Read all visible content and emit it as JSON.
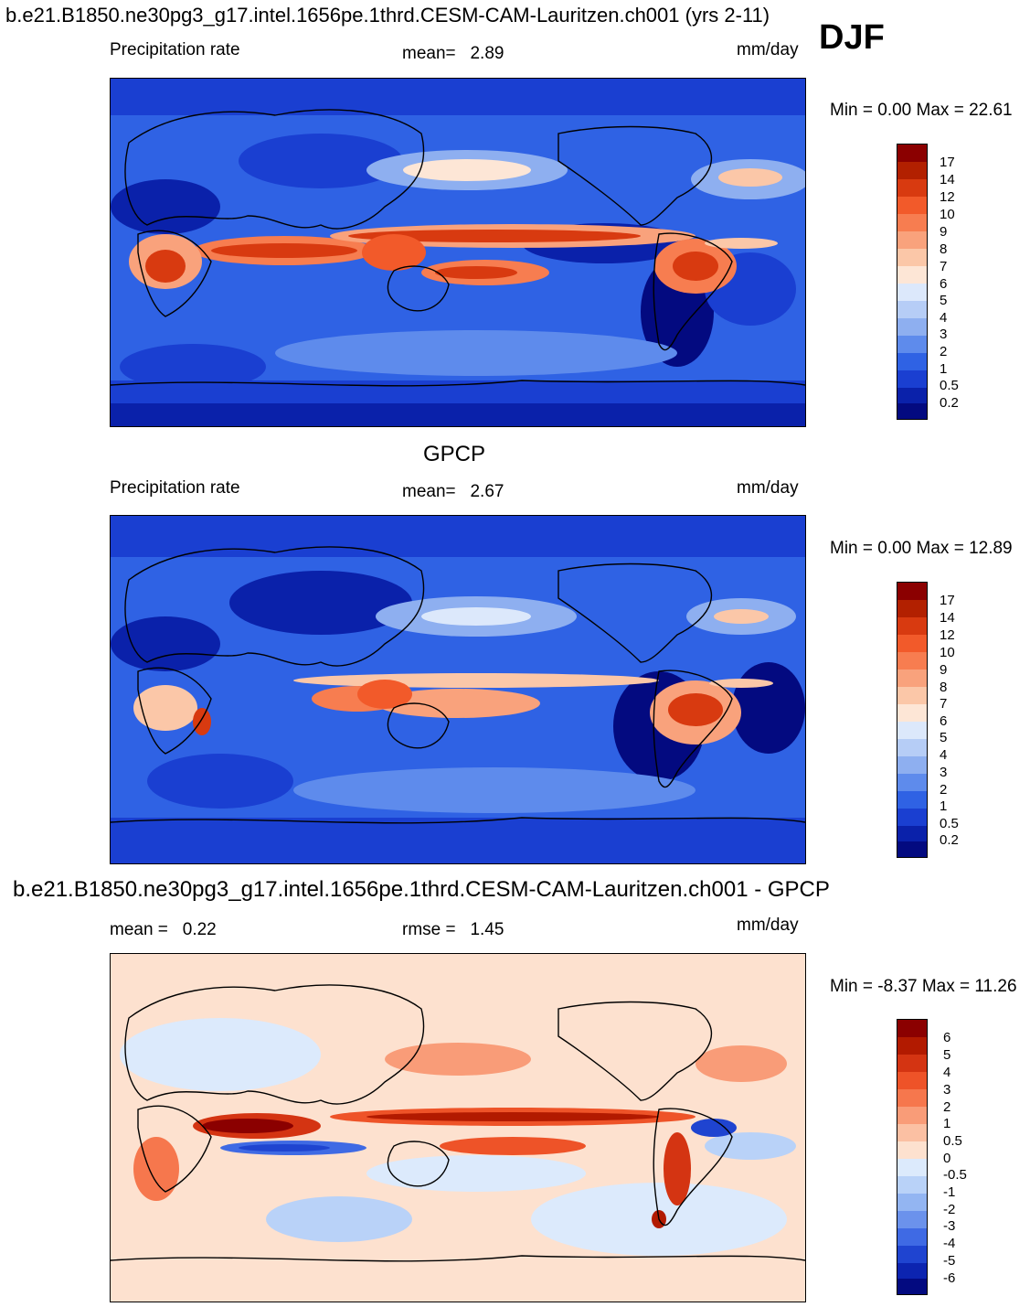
{
  "header": {
    "title": "b.e21.B1850.ne30pg3_g17.intel.1656pe.1thrd.CESM-CAM-Lauritzen.ch001 (yrs 2-11)",
    "season": "DJF"
  },
  "panels": [
    {
      "name": "model",
      "variable": "Precipitation rate",
      "stat_label": "mean=",
      "stat_value": "2.89",
      "units": "mm/day",
      "minmax": "Min =    0.00 Max =  22.61",
      "colorbar_labels": [
        "17",
        "14",
        "12",
        "10",
        "9",
        "8",
        "7",
        "6",
        "5",
        "4",
        "3",
        "2",
        "1",
        "0.5",
        "0.2"
      ],
      "colors": [
        "#8b0000",
        "#b22000",
        "#d83a10",
        "#f25a2a",
        "#f77d50",
        "#f9a27c",
        "#fbc7a8",
        "#fde6d6",
        "#dce8fb",
        "#b6cdf6",
        "#8eaff0",
        "#5e8bec",
        "#2f62e4",
        "#1a3fd1",
        "#0a21aa",
        "#030a80"
      ]
    },
    {
      "name": "obs",
      "heading": "GPCP",
      "variable": "Precipitation rate",
      "stat_label": "mean=",
      "stat_value": "2.67",
      "units": "mm/day",
      "minmax": "Min =    0.00 Max =  12.89",
      "colorbar_labels": [
        "17",
        "14",
        "12",
        "10",
        "9",
        "8",
        "7",
        "6",
        "5",
        "4",
        "3",
        "2",
        "1",
        "0.5",
        "0.2"
      ],
      "colors": [
        "#8b0000",
        "#b22000",
        "#d83a10",
        "#f25a2a",
        "#f77d50",
        "#f9a27c",
        "#fbc7a8",
        "#fde6d6",
        "#dce8fb",
        "#b6cdf6",
        "#8eaff0",
        "#5e8bec",
        "#2f62e4",
        "#1a3fd1",
        "#0a21aa",
        "#030a80"
      ]
    },
    {
      "name": "diff",
      "heading": "b.e21.B1850.ne30pg3_g17.intel.1656pe.1thrd.CESM-CAM-Lauritzen.ch001 - GPCP",
      "mean_label": "mean =",
      "mean_value": "0.22",
      "rmse_label": "rmse =",
      "rmse_value": "1.45",
      "units": "mm/day",
      "minmax": "Min =  -8.37 Max =  11.26",
      "colorbar_labels": [
        "6",
        "5",
        "4",
        "3",
        "2",
        "1",
        "0.5",
        "0",
        "-0.5",
        "-1",
        "-2",
        "-3",
        "-4",
        "-5",
        "-6"
      ],
      "colors": [
        "#8b0000",
        "#b21a00",
        "#d43412",
        "#ee5328",
        "#f6774d",
        "#f99c78",
        "#fbc0a3",
        "#fde1cf",
        "#dceafc",
        "#b9d2f8",
        "#93b5f2",
        "#6b92ec",
        "#3f6ae4",
        "#1f44d0",
        "#0c24b0",
        "#030a80"
      ]
    }
  ]
}
